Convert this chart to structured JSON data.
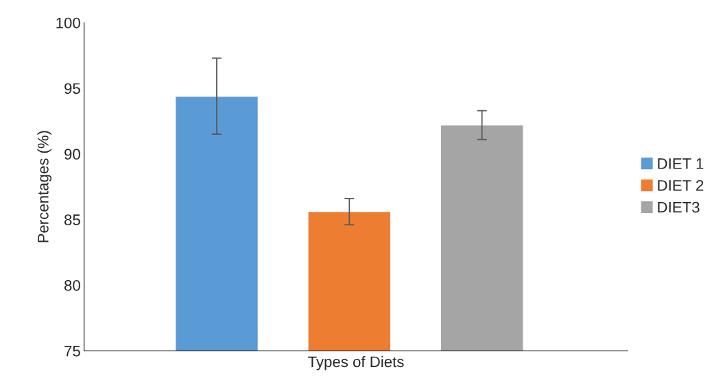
{
  "chart_data": {
    "type": "bar",
    "xlabel": "Types of Diets",
    "ylabel": "Percentages (%)",
    "categories": [
      null,
      null,
      null
    ],
    "series": [
      {
        "name": "DIET 1",
        "color": "#5b9bd5",
        "values": [
          94.4,
          null,
          null
        ],
        "errors": [
          2.9,
          null,
          null
        ]
      },
      {
        "name": "DIET 2",
        "color": "#ed7d31",
        "values": [
          null,
          85.6,
          null
        ],
        "errors": [
          null,
          1.0,
          null
        ]
      },
      {
        "name": "DIET3",
        "color": "#a5a5a5",
        "values": [
          null,
          null,
          92.2
        ],
        "errors": [
          null,
          null,
          1.1
        ]
      }
    ],
    "ylim": [
      75,
      100
    ],
    "yticks": [
      75,
      80,
      85,
      90,
      95,
      100
    ],
    "grid": false,
    "legend": "right"
  }
}
